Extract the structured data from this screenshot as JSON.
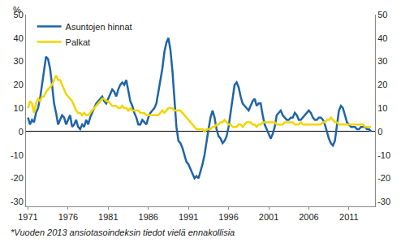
{
  "chart_data": {
    "type": "line",
    "ylabel": "%",
    "note": "*Vuoden 2013 ansiotasoindeksin tiedot vielä ennakollisia",
    "legend": "upper left",
    "grid": false,
    "x": [
      1971,
      1971.25,
      1971.5,
      1971.75,
      1972,
      1972.25,
      1972.5,
      1972.75,
      1973,
      1973.25,
      1973.5,
      1973.75,
      1974,
      1974.25,
      1974.5,
      1974.75,
      1975,
      1975.25,
      1975.5,
      1975.75,
      1976,
      1976.25,
      1976.5,
      1976.75,
      1977,
      1977.25,
      1977.5,
      1977.75,
      1978,
      1978.25,
      1978.5,
      1978.75,
      1979,
      1979.25,
      1979.5,
      1979.75,
      1980,
      1980.25,
      1980.5,
      1980.75,
      1981,
      1981.25,
      1981.5,
      1981.75,
      1982,
      1982.25,
      1982.5,
      1982.75,
      1983,
      1983.25,
      1983.5,
      1983.75,
      1984,
      1984.25,
      1984.5,
      1984.75,
      1985,
      1985.25,
      1985.5,
      1985.75,
      1986,
      1986.25,
      1986.5,
      1986.75,
      1987,
      1987.25,
      1987.5,
      1987.75,
      1988,
      1988.25,
      1988.5,
      1988.75,
      1989,
      1989.25,
      1989.5,
      1989.75,
      1990,
      1990.25,
      1990.5,
      1990.75,
      1991,
      1991.25,
      1991.5,
      1991.75,
      1992,
      1992.25,
      1992.5,
      1992.75,
      1993,
      1993.25,
      1993.5,
      1993.75,
      1994,
      1994.25,
      1994.5,
      1994.75,
      1995,
      1995.25,
      1995.5,
      1995.75,
      1996,
      1996.25,
      1996.5,
      1996.75,
      1997,
      1997.25,
      1997.5,
      1997.75,
      1998,
      1998.25,
      1998.5,
      1998.75,
      1999,
      1999.25,
      1999.5,
      1999.75,
      2000,
      2000.25,
      2000.5,
      2000.75,
      2001,
      2001.25,
      2001.5,
      2001.75,
      2002,
      2002.25,
      2002.5,
      2002.75,
      2003,
      2003.25,
      2003.5,
      2003.75,
      2004,
      2004.25,
      2004.5,
      2004.75,
      2005,
      2005.25,
      2005.5,
      2005.75,
      2006,
      2006.25,
      2006.5,
      2006.75,
      2007,
      2007.25,
      2007.5,
      2007.75,
      2008,
      2008.25,
      2008.5,
      2008.75,
      2009,
      2009.25,
      2009.5,
      2009.75,
      2010,
      2010.25,
      2010.5,
      2010.75,
      2011,
      2011.25,
      2011.5,
      2011.75,
      2012,
      2012.25,
      2012.5,
      2012.75,
      2013,
      2013.25,
      2013.5,
      2013.75
    ],
    "series": [
      {
        "name": "Asuntojen hinnat",
        "color": "#1f64a8",
        "values": [
          6,
          3,
          5,
          4,
          8,
          10,
          14,
          20,
          25,
          32,
          31,
          27,
          20,
          12,
          8,
          3,
          5,
          7,
          6,
          3,
          5,
          7,
          2,
          3,
          5,
          2,
          1,
          3,
          2,
          5,
          3,
          6,
          8,
          10,
          12,
          13,
          14,
          15,
          13,
          12,
          14,
          16,
          18,
          17,
          15,
          18,
          20,
          21,
          20,
          22,
          18,
          13,
          11,
          8,
          6,
          3,
          3,
          5,
          4,
          3,
          6,
          8,
          9,
          10,
          12,
          17,
          22,
          27,
          34,
          38,
          40,
          35,
          26,
          14,
          2,
          -4,
          -5,
          -7,
          -10,
          -13,
          -14,
          -16,
          -18,
          -20,
          -19,
          -20,
          -17,
          -14,
          -10,
          -4,
          1,
          6,
          9,
          6,
          1,
          -2,
          -3,
          -5,
          -4,
          -2,
          2,
          8,
          14,
          20,
          21,
          19,
          15,
          12,
          11,
          10,
          9,
          11,
          13,
          14,
          11,
          12,
          12,
          7,
          3,
          1,
          -1,
          -3,
          -1,
          2,
          7,
          8,
          9,
          7,
          6,
          5,
          5,
          6,
          6,
          8,
          7,
          5,
          5,
          6,
          7,
          8,
          9,
          8,
          6,
          5,
          5,
          6,
          6,
          5,
          3,
          0,
          -3,
          -5,
          -6,
          -4,
          3,
          9,
          11,
          10,
          7,
          4,
          3,
          2,
          2,
          2,
          1,
          1,
          2,
          2,
          2,
          1,
          1,
          0
        ]
      },
      {
        "name": "Palkat",
        "color": "#f2d600",
        "axis": "y2",
        "values": [
          10,
          13,
          12,
          8,
          12,
          14,
          13,
          15,
          15,
          17,
          18,
          19,
          20,
          22,
          24,
          22,
          22,
          20,
          18,
          16,
          15,
          14,
          13,
          11,
          9,
          8,
          8,
          7,
          8,
          7,
          7,
          8,
          9,
          10,
          11,
          12,
          13,
          14,
          14,
          13,
          13,
          12,
          11,
          11,
          11,
          10,
          10,
          11,
          10,
          10,
          9,
          10,
          9,
          9,
          9,
          9,
          8,
          8,
          8,
          7,
          7,
          7,
          7,
          7,
          7,
          7,
          8,
          9,
          8,
          9,
          10,
          10,
          10,
          9,
          9,
          9,
          9,
          8,
          7,
          6,
          5,
          4,
          3,
          2,
          1,
          1,
          1,
          1,
          0,
          1,
          1,
          1,
          2,
          2,
          3,
          3,
          4,
          4,
          5,
          4,
          3,
          3,
          2,
          2,
          2,
          3,
          3,
          2,
          3,
          4,
          4,
          4,
          3,
          3,
          2,
          3,
          3,
          4,
          4,
          4,
          4,
          4,
          4,
          4,
          3,
          3,
          3,
          3,
          4,
          4,
          4,
          4,
          4,
          3,
          3,
          3,
          4,
          3,
          3,
          3,
          3,
          3,
          3,
          3,
          3,
          3,
          3,
          4,
          4,
          5,
          5,
          6,
          5,
          4,
          4,
          3,
          3,
          3,
          3,
          3,
          3,
          3,
          3,
          3,
          3,
          3,
          3,
          3,
          2,
          2,
          2,
          2
        ]
      }
    ],
    "xlim": [
      1970.75,
      2014.25
    ],
    "xticks": [
      1971,
      1976,
      1981,
      1986,
      1991,
      1996,
      2001,
      2006,
      2011
    ],
    "ylim": [
      -32,
      50
    ],
    "yticks": [
      -30,
      -20,
      -10,
      0,
      10,
      20,
      30,
      40,
      50
    ],
    "y2lim": [
      -32,
      50
    ],
    "y2ticks": [
      -30,
      -20,
      -10,
      0,
      10,
      20,
      30,
      40,
      50
    ]
  }
}
